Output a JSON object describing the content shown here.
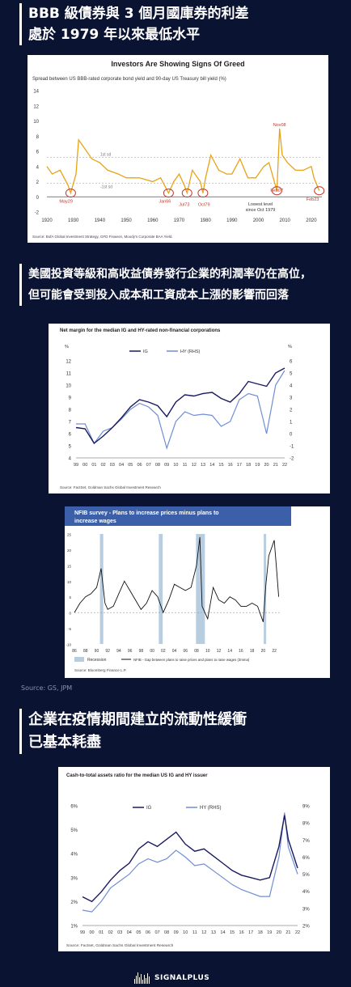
{
  "heading1": {
    "line1": "BBB 級債券與 3 個月國庫券的利差",
    "line2": "處於 1979 年以來最低水平"
  },
  "heading2": {
    "line1": "美國投資等級和高收益債券發行企業的利潤率仍在高位，",
    "line2": "但可能會受到投入成本和工資成本上漲的影響而回落"
  },
  "heading3": {
    "line1": "企業在疫情期間建立的流動性緩衝",
    "line2": "已基本耗盡"
  },
  "source_line": "Source: GS, JPM",
  "logo_text": "SIGNALPLUS",
  "colors": {
    "background": "#0b1333",
    "gold": "#e8a317",
    "navy": "#1a1a5e",
    "lightblue": "#6f8ed6",
    "recession": "#b9cde0",
    "circle": "#c0392b",
    "nfib_header": "#3b5fa8"
  },
  "chart_data": [
    {
      "type": "line",
      "title": "Investors Are Showing Signs Of Greed",
      "subtitle": "Spread between US BBB-rated corporate bond yield and 90-day US Treasury bill yield (%)",
      "ylim": [
        -2,
        14
      ],
      "yticks": [
        "14",
        "12",
        "10",
        "8",
        "6",
        "4",
        "2",
        "0",
        "-2"
      ],
      "xticks": [
        "1920",
        "1930",
        "1940",
        "1950",
        "1960",
        "1970",
        "1980",
        "1990",
        "2000",
        "2010",
        "2020"
      ],
      "sd_labels": [
        "1st sd",
        "-1st sd"
      ],
      "annotations": [
        "May29",
        "Jan66",
        "Jul73",
        "Oct79",
        "Nov08",
        "Feb07",
        "Feb23",
        "Lowest level since Oct 1979"
      ],
      "source": "Source: BofA Global Investment Strategy, GFD Finaeon, Moody's Corporate BAA Yield.",
      "series": [
        {
          "x": [
            1920,
            1922,
            1925,
            1928,
            1929,
            1931,
            1932,
            1934,
            1937,
            1940,
            1943,
            1947,
            1950,
            1955,
            1960,
            1963,
            1966,
            1968,
            1970,
            1972,
            1973,
            1975,
            1978,
            1979,
            1980,
            1982,
            1985,
            1988,
            1990,
            1993,
            1996,
            1999,
            2002,
            2004,
            2007,
            2008,
            2009,
            2011,
            2014,
            2017,
            2020,
            2021,
            2023
          ],
          "y": [
            4,
            3,
            3.5,
            1.5,
            0.5,
            3,
            7.5,
            6.5,
            5,
            4.5,
            3.5,
            3,
            2.5,
            2.5,
            2,
            2.5,
            0.5,
            2,
            3,
            1.5,
            0.5,
            3.5,
            2,
            0.5,
            2.5,
            5.5,
            3.5,
            3,
            3,
            5,
            2.5,
            2.5,
            4,
            4.5,
            0.8,
            9,
            5.5,
            4.5,
            3.5,
            3.5,
            4,
            2.5,
            0.8
          ]
        }
      ]
    },
    {
      "type": "line",
      "title": "Net margin for the median IG and HY-rated non-financial corporations",
      "yleft_label": "%",
      "yright_label": "%",
      "ylim_left": [
        4,
        12
      ],
      "ylim_right": [
        -2,
        6
      ],
      "yticks_left": [
        "12",
        "11",
        "10",
        "9",
        "8",
        "7",
        "6",
        "5",
        "4"
      ],
      "yticks_right": [
        "6",
        "5",
        "4",
        "3",
        "2",
        "1",
        "0",
        "-1",
        "-2"
      ],
      "xticks": [
        "99",
        "00",
        "01",
        "02",
        "03",
        "04",
        "05",
        "06",
        "07",
        "08",
        "09",
        "10",
        "11",
        "12",
        "13",
        "14",
        "15",
        "16",
        "17",
        "18",
        "19",
        "20",
        "21",
        "22"
      ],
      "source": "Source: FactSet, Goldman Sachs Global Investment Research",
      "series": [
        {
          "name": "IG",
          "axis": "left",
          "x": [
            1999,
            2000,
            2001,
            2002,
            2003,
            2004,
            2005,
            2006,
            2007,
            2008,
            2009,
            2010,
            2011,
            2012,
            2013,
            2014,
            2015,
            2016,
            2017,
            2018,
            2019,
            2020,
            2021,
            2022
          ],
          "y": [
            6.5,
            6.4,
            5.2,
            5.8,
            6.5,
            7.3,
            8.2,
            8.8,
            8.6,
            8.3,
            7.4,
            8.6,
            9.2,
            9.1,
            9.3,
            9.4,
            8.9,
            8.6,
            9.3,
            10.3,
            10.1,
            9.9,
            11.0,
            11.4
          ]
        },
        {
          "name": "HY (RHS)",
          "axis": "right",
          "x": [
            1999,
            2000,
            2001,
            2002,
            2003,
            2004,
            2005,
            2006,
            2007,
            2008,
            2009,
            2010,
            2011,
            2012,
            2013,
            2014,
            2015,
            2016,
            2017,
            2018,
            2019,
            2020,
            2021,
            2022
          ],
          "y": [
            0.8,
            0.8,
            -0.8,
            0.2,
            0.5,
            1.2,
            2.0,
            2.5,
            2.2,
            1.5,
            -1.2,
            1.0,
            1.8,
            1.5,
            1.6,
            1.5,
            0.6,
            1.0,
            2.8,
            3.3,
            3.1,
            0.0,
            4.0,
            5.2
          ]
        }
      ]
    },
    {
      "type": "line",
      "title": "NFIB survey - Plans to increase prices minus plans to increase wages",
      "ylim": [
        -10,
        25
      ],
      "yticks": [
        "25",
        "20",
        "15",
        "10",
        "5",
        "0",
        "-5",
        "-10"
      ],
      "xticks": [
        "86",
        "88",
        "90",
        "92",
        "94",
        "96",
        "98",
        "00",
        "02",
        "04",
        "06",
        "08",
        "10",
        "12",
        "14",
        "16",
        "18",
        "20",
        "22"
      ],
      "legend": [
        "Recession",
        "NFIB - Gap between plans to raise prices and plans to raise wages (3mma)"
      ],
      "recessions": [
        [
          1990.6,
          1991.2
        ],
        [
          2001.2,
          2001.9
        ],
        [
          2007.9,
          2009.5
        ],
        [
          2020.1,
          2020.4
        ]
      ],
      "source": "Source: Bloomberg Finance L.P.",
      "series": [
        {
          "name": "NFIB - Gap between plans to raise prices and plans to raise wages (3mma)",
          "x": [
            1986,
            1987,
            1988,
            1989,
            1990,
            1990.8,
            1991.5,
            1992,
            1993,
            1994,
            1995,
            1996,
            1997,
            1998,
            1999,
            2000,
            2001,
            2002,
            2003,
            2004,
            2005,
            2006,
            2007,
            2008,
            2008.6,
            2009,
            2010,
            2011,
            2012,
            2013,
            2014,
            2015,
            2016,
            2017,
            2018,
            2019,
            2020,
            2020.5,
            2021,
            2022,
            2022.4,
            2022.8
          ],
          "y": [
            0,
            3,
            5,
            6,
            8,
            14,
            3,
            1,
            2,
            6,
            10,
            7,
            4,
            1,
            3,
            7,
            5,
            0,
            4,
            9,
            8,
            7,
            8,
            15,
            24,
            2,
            -2,
            8,
            4,
            3,
            5,
            4,
            2,
            2,
            3,
            2,
            -3,
            9,
            18,
            23,
            14,
            5
          ]
        }
      ]
    },
    {
      "type": "line",
      "title": "Cash-to-total assets ratio for the median US IG and HY issuer",
      "ylim_left": [
        1,
        6
      ],
      "ylim_right": [
        2,
        9
      ],
      "yticks_left": [
        "6%",
        "5%",
        "4%",
        "3%",
        "2%",
        "1%"
      ],
      "yticks_right": [
        "9%",
        "8%",
        "7%",
        "6%",
        "5%",
        "4%",
        "3%",
        "2%"
      ],
      "xticks": [
        "99",
        "00",
        "01",
        "02",
        "03",
        "04",
        "05",
        "06",
        "07",
        "08",
        "09",
        "10",
        "11",
        "12",
        "13",
        "14",
        "15",
        "16",
        "17",
        "18",
        "19",
        "20",
        "21",
        "22"
      ],
      "source": "Source: Factset, Goldman Sachs Global Investment Research",
      "series": [
        {
          "name": "IG",
          "axis": "left",
          "x": [
            1999,
            2000,
            2001,
            2002,
            2003,
            2004,
            2005,
            2006,
            2007,
            2008,
            2009,
            2010,
            2011,
            2012,
            2013,
            2014,
            2015,
            2016,
            2017,
            2018,
            2019,
            2020,
            2020.6,
            2021,
            2022
          ],
          "y": [
            2.2,
            2.0,
            2.4,
            2.9,
            3.3,
            3.6,
            4.2,
            4.5,
            4.3,
            4.6,
            4.9,
            4.4,
            4.1,
            4.2,
            3.9,
            3.6,
            3.3,
            3.1,
            3.0,
            2.9,
            3.0,
            4.3,
            5.6,
            4.6,
            3.4
          ]
        },
        {
          "name": "HY (RHS)",
          "axis": "right",
          "x": [
            1999,
            2000,
            2001,
            2002,
            2003,
            2004,
            2005,
            2006,
            2007,
            2008,
            2009,
            2010,
            2011,
            2012,
            2013,
            2014,
            2015,
            2016,
            2017,
            2018,
            2019,
            2020,
            2020.6,
            2021,
            2022
          ],
          "y": [
            2.9,
            2.8,
            3.4,
            4.2,
            4.6,
            5.0,
            5.6,
            5.9,
            5.7,
            5.9,
            6.4,
            6.0,
            5.5,
            5.6,
            5.2,
            4.8,
            4.4,
            4.1,
            3.9,
            3.7,
            3.7,
            6.0,
            8.6,
            6.6,
            5.0
          ]
        }
      ]
    }
  ]
}
